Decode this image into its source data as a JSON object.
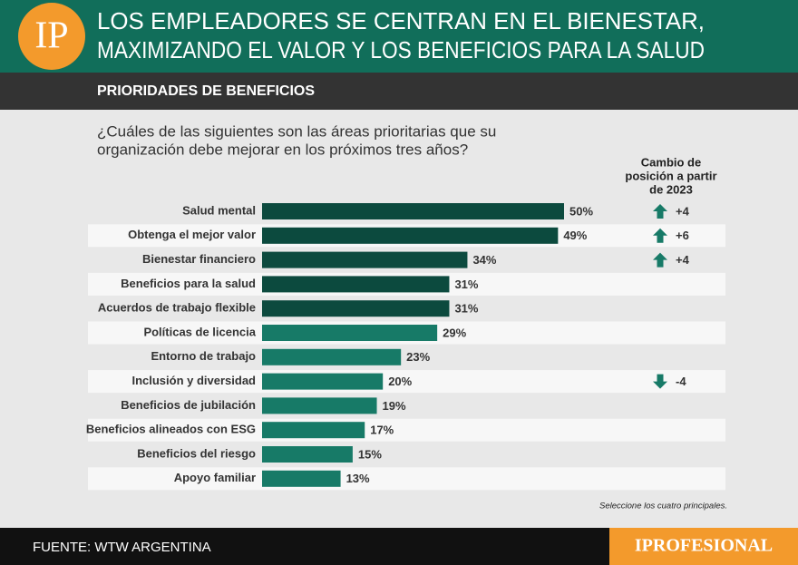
{
  "logo": "IP",
  "chart_data": {
    "type": "bar",
    "title": [
      "LOS EMPLEADORES SE CENTRAN EN EL BIENESTAR,",
      "MAXIMIZANDO EL VALOR Y LOS BENEFICIOS PARA LA SALUD"
    ],
    "subtitle": "PRIORIDADES DE BENEFICIOS",
    "question": [
      "¿Cuáles de las siguientes son las áreas prioritarias que su",
      "organización debe mejorar en los próximos tres años?"
    ],
    "categories": [
      "Salud mental",
      "Obtenga el mejor valor",
      "Bienestar financiero",
      "Beneficios para la salud",
      "Acuerdos de trabajo flexible",
      "Políticas de licencia",
      "Entorno de trabajo",
      "Inclusión y diversidad",
      "Beneficios de jubilación",
      "Beneficios alineados con ESG",
      "Beneficios del riesgo",
      "Apoyo familiar"
    ],
    "values": [
      50,
      49,
      34,
      31,
      31,
      29,
      23,
      20,
      19,
      17,
      15,
      13
    ],
    "value_labels": [
      "50%",
      "49%",
      "34%",
      "31%",
      "31%",
      "29%",
      "23%",
      "20%",
      "19%",
      "17%",
      "15%",
      "13%"
    ],
    "colors": [
      "#0c4a3e",
      "#0c4a3e",
      "#0c4a3e",
      "#0c4a3e",
      "#0c4a3e",
      "#177a67",
      "#177a67",
      "#177a67",
      "#177a67",
      "#177a67",
      "#177a67",
      "#177a67"
    ],
    "change_header": [
      "Cambio de",
      "posición a partir",
      "de 2023"
    ],
    "changes": [
      4,
      6,
      4,
      null,
      null,
      null,
      null,
      -4,
      null,
      null,
      null,
      null
    ],
    "change_labels": [
      "+4",
      "+6",
      "+4",
      null,
      null,
      null,
      null,
      "-4",
      null,
      null,
      null,
      null
    ],
    "note": "Seleccione los cuatro principales."
  },
  "source": "FUENTE: WTW ARGENTINA",
  "brand": "IPROFESIONAL"
}
